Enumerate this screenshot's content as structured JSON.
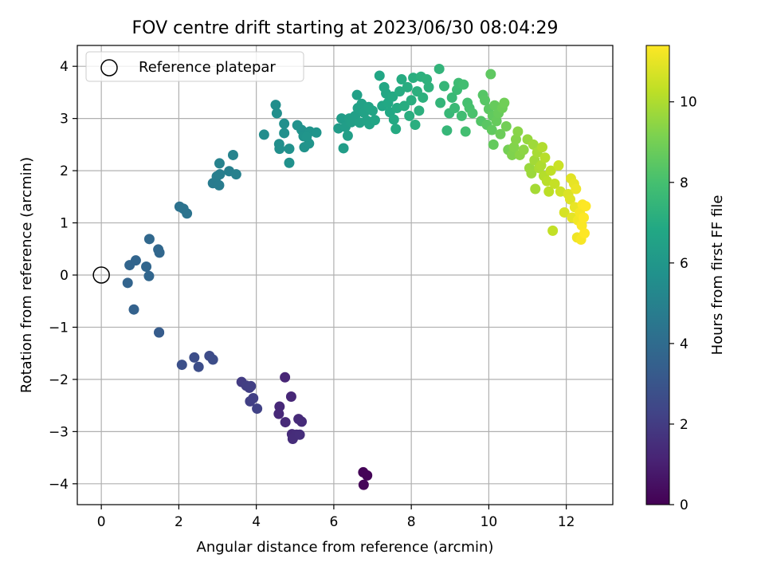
{
  "chart_data": {
    "type": "scatter",
    "title": "FOV centre drift starting at 2023/06/30 08:04:29",
    "xlabel": "Angular distance from reference (arcmin)",
    "ylabel": "Rotation from reference (arcmin)",
    "xlim": [
      -0.62,
      13.2
    ],
    "ylim": [
      -4.4,
      4.4
    ],
    "x_ticks": [
      0,
      2,
      4,
      6,
      8,
      10,
      12
    ],
    "y_ticks": [
      -4,
      -3,
      -2,
      -1,
      0,
      1,
      2,
      3,
      4
    ],
    "grid": true,
    "legend": {
      "position": "top-left",
      "entries": [
        {
          "label": "Reference platepar",
          "marker": "open-circle"
        }
      ]
    },
    "reference_point": {
      "x": 0,
      "y": 0
    },
    "colorbar": {
      "label": "Hours from first FF file",
      "colormap": "viridis",
      "min": 0,
      "max": 11.4,
      "ticks": [
        0,
        2,
        4,
        6,
        8,
        10
      ]
    },
    "points": [
      {
        "x": 6.76,
        "y": -3.78,
        "t": 0.1
      },
      {
        "x": 6.86,
        "y": -3.84,
        "t": 0.1
      },
      {
        "x": 6.77,
        "y": -4.02,
        "t": 0.15
      },
      {
        "x": 4.74,
        "y": -1.96,
        "t": 1.2
      },
      {
        "x": 4.9,
        "y": -2.33,
        "t": 1.25
      },
      {
        "x": 4.6,
        "y": -2.52,
        "t": 1.3
      },
      {
        "x": 4.58,
        "y": -2.66,
        "t": 1.3
      },
      {
        "x": 4.75,
        "y": -2.82,
        "t": 1.35
      },
      {
        "x": 5.09,
        "y": -2.76,
        "t": 1.35
      },
      {
        "x": 5.17,
        "y": -2.81,
        "t": 1.4
      },
      {
        "x": 4.92,
        "y": -3.05,
        "t": 1.4
      },
      {
        "x": 5.04,
        "y": -3.06,
        "t": 1.45
      },
      {
        "x": 4.94,
        "y": -3.14,
        "t": 1.45
      },
      {
        "x": 5.12,
        "y": -3.06,
        "t": 1.5
      },
      {
        "x": 3.62,
        "y": -2.05,
        "t": 2.0
      },
      {
        "x": 3.74,
        "y": -2.12,
        "t": 2.05
      },
      {
        "x": 3.82,
        "y": -2.16,
        "t": 2.1
      },
      {
        "x": 3.86,
        "y": -2.13,
        "t": 2.1
      },
      {
        "x": 3.92,
        "y": -2.36,
        "t": 2.15
      },
      {
        "x": 3.84,
        "y": -2.42,
        "t": 2.15
      },
      {
        "x": 4.02,
        "y": -2.56,
        "t": 2.2
      },
      {
        "x": 2.79,
        "y": -1.55,
        "t": 2.6
      },
      {
        "x": 2.88,
        "y": -1.62,
        "t": 2.65
      },
      {
        "x": 2.4,
        "y": -1.58,
        "t": 2.7
      },
      {
        "x": 2.51,
        "y": -1.76,
        "t": 2.7
      },
      {
        "x": 2.08,
        "y": -1.72,
        "t": 2.8
      },
      {
        "x": 1.49,
        "y": -1.1,
        "t": 3.3
      },
      {
        "x": 1.49,
        "y": -1.1,
        "t": 3.3
      },
      {
        "x": 0.84,
        "y": -0.66,
        "t": 3.55
      },
      {
        "x": 0.68,
        "y": -0.15,
        "t": 3.65
      },
      {
        "x": 0.73,
        "y": 0.19,
        "t": 3.7
      },
      {
        "x": 0.89,
        "y": 0.28,
        "t": 3.7
      },
      {
        "x": 1.16,
        "y": 0.16,
        "t": 3.75
      },
      {
        "x": 1.23,
        "y": -0.02,
        "t": 3.75
      },
      {
        "x": 1.47,
        "y": 0.49,
        "t": 3.8
      },
      {
        "x": 1.5,
        "y": 0.43,
        "t": 3.8
      },
      {
        "x": 1.24,
        "y": 0.69,
        "t": 3.85
      },
      {
        "x": 2.02,
        "y": 1.31,
        "t": 4.3
      },
      {
        "x": 2.12,
        "y": 1.27,
        "t": 4.35
      },
      {
        "x": 2.21,
        "y": 1.18,
        "t": 4.35
      },
      {
        "x": 2.88,
        "y": 1.76,
        "t": 4.7
      },
      {
        "x": 3.04,
        "y": 1.72,
        "t": 4.75
      },
      {
        "x": 2.98,
        "y": 1.89,
        "t": 4.8
      },
      {
        "x": 3.06,
        "y": 1.93,
        "t": 4.85
      },
      {
        "x": 3.3,
        "y": 1.99,
        "t": 4.9
      },
      {
        "x": 3.48,
        "y": 1.93,
        "t": 4.95
      },
      {
        "x": 3.05,
        "y": 2.14,
        "t": 5.0
      },
      {
        "x": 3.4,
        "y": 2.3,
        "t": 5.05
      },
      {
        "x": 4.2,
        "y": 2.69,
        "t": 5.5
      },
      {
        "x": 4.5,
        "y": 3.26,
        "t": 5.55
      },
      {
        "x": 4.53,
        "y": 3.1,
        "t": 5.55
      },
      {
        "x": 4.59,
        "y": 2.51,
        "t": 5.6
      },
      {
        "x": 4.6,
        "y": 2.42,
        "t": 5.6
      },
      {
        "x": 4.72,
        "y": 2.9,
        "t": 5.65
      },
      {
        "x": 4.72,
        "y": 2.72,
        "t": 5.65
      },
      {
        "x": 4.85,
        "y": 2.42,
        "t": 5.7
      },
      {
        "x": 4.85,
        "y": 2.15,
        "t": 5.7
      },
      {
        "x": 5.06,
        "y": 2.87,
        "t": 5.75
      },
      {
        "x": 5.17,
        "y": 2.78,
        "t": 5.75
      },
      {
        "x": 5.22,
        "y": 2.66,
        "t": 5.8
      },
      {
        "x": 5.24,
        "y": 2.45,
        "t": 5.8
      },
      {
        "x": 5.36,
        "y": 2.52,
        "t": 5.85
      },
      {
        "x": 5.38,
        "y": 2.75,
        "t": 5.85
      },
      {
        "x": 5.55,
        "y": 2.73,
        "t": 5.9
      },
      {
        "x": 5.3,
        "y": 2.65,
        "t": 5.9
      },
      {
        "x": 6.12,
        "y": 2.81,
        "t": 6.2
      },
      {
        "x": 6.2,
        "y": 3.0,
        "t": 6.25
      },
      {
        "x": 6.25,
        "y": 2.43,
        "t": 6.3
      },
      {
        "x": 6.3,
        "y": 2.84,
        "t": 6.3
      },
      {
        "x": 6.36,
        "y": 2.67,
        "t": 6.35
      },
      {
        "x": 6.4,
        "y": 3.0,
        "t": 6.35
      },
      {
        "x": 6.45,
        "y": 2.93,
        "t": 6.4
      },
      {
        "x": 6.55,
        "y": 3.05,
        "t": 6.4
      },
      {
        "x": 6.6,
        "y": 3.45,
        "t": 6.45
      },
      {
        "x": 6.62,
        "y": 3.2,
        "t": 6.45
      },
      {
        "x": 6.67,
        "y": 2.92,
        "t": 6.5
      },
      {
        "x": 6.72,
        "y": 3.28,
        "t": 6.5
      },
      {
        "x": 6.78,
        "y": 3.11,
        "t": 6.55
      },
      {
        "x": 6.85,
        "y": 2.96,
        "t": 6.55
      },
      {
        "x": 6.9,
        "y": 3.22,
        "t": 6.6
      },
      {
        "x": 6.92,
        "y": 2.89,
        "t": 6.6
      },
      {
        "x": 7.0,
        "y": 3.15,
        "t": 6.65
      },
      {
        "x": 7.06,
        "y": 2.97,
        "t": 6.7
      },
      {
        "x": 7.18,
        "y": 3.82,
        "t": 6.75
      },
      {
        "x": 7.25,
        "y": 3.24,
        "t": 6.75
      },
      {
        "x": 7.3,
        "y": 3.6,
        "t": 6.8
      },
      {
        "x": 7.35,
        "y": 3.48,
        "t": 6.8
      },
      {
        "x": 7.4,
        "y": 3.3,
        "t": 6.85
      },
      {
        "x": 7.45,
        "y": 3.12,
        "t": 6.85
      },
      {
        "x": 7.52,
        "y": 3.42,
        "t": 6.9
      },
      {
        "x": 7.55,
        "y": 2.98,
        "t": 6.9
      },
      {
        "x": 7.6,
        "y": 2.8,
        "t": 6.95
      },
      {
        "x": 7.63,
        "y": 3.2,
        "t": 6.95
      },
      {
        "x": 7.7,
        "y": 3.52,
        "t": 7.0
      },
      {
        "x": 7.75,
        "y": 3.75,
        "t": 7.0
      },
      {
        "x": 7.82,
        "y": 3.24,
        "t": 7.05
      },
      {
        "x": 7.9,
        "y": 3.6,
        "t": 7.05
      },
      {
        "x": 7.95,
        "y": 3.05,
        "t": 7.1
      },
      {
        "x": 8.0,
        "y": 3.35,
        "t": 7.1
      },
      {
        "x": 8.05,
        "y": 3.78,
        "t": 7.15
      },
      {
        "x": 8.1,
        "y": 2.88,
        "t": 7.15
      },
      {
        "x": 8.15,
        "y": 3.52,
        "t": 7.2
      },
      {
        "x": 8.2,
        "y": 3.15,
        "t": 7.2
      },
      {
        "x": 8.25,
        "y": 3.8,
        "t": 7.25
      },
      {
        "x": 8.3,
        "y": 3.4,
        "t": 7.25
      },
      {
        "x": 8.4,
        "y": 3.75,
        "t": 7.3
      },
      {
        "x": 8.45,
        "y": 3.6,
        "t": 7.3
      },
      {
        "x": 8.72,
        "y": 3.95,
        "t": 7.4
      },
      {
        "x": 8.75,
        "y": 3.3,
        "t": 7.45
      },
      {
        "x": 8.85,
        "y": 3.62,
        "t": 7.5
      },
      {
        "x": 8.92,
        "y": 2.77,
        "t": 7.55
      },
      {
        "x": 8.98,
        "y": 3.1,
        "t": 7.6
      },
      {
        "x": 9.05,
        "y": 3.4,
        "t": 7.65
      },
      {
        "x": 9.12,
        "y": 3.2,
        "t": 7.7
      },
      {
        "x": 9.18,
        "y": 3.55,
        "t": 7.75
      },
      {
        "x": 9.22,
        "y": 3.68,
        "t": 7.8
      },
      {
        "x": 9.3,
        "y": 3.05,
        "t": 7.85
      },
      {
        "x": 9.35,
        "y": 3.65,
        "t": 7.9
      },
      {
        "x": 9.4,
        "y": 2.75,
        "t": 7.95
      },
      {
        "x": 9.45,
        "y": 3.3,
        "t": 8.0
      },
      {
        "x": 9.5,
        "y": 3.2,
        "t": 8.05
      },
      {
        "x": 9.58,
        "y": 3.1,
        "t": 8.1
      },
      {
        "x": 9.8,
        "y": 2.95,
        "t": 8.3
      },
      {
        "x": 9.85,
        "y": 3.45,
        "t": 8.35
      },
      {
        "x": 9.9,
        "y": 3.35,
        "t": 8.4
      },
      {
        "x": 9.95,
        "y": 2.88,
        "t": 8.45
      },
      {
        "x": 10.0,
        "y": 3.18,
        "t": 8.5
      },
      {
        "x": 10.05,
        "y": 3.85,
        "t": 8.55
      },
      {
        "x": 10.08,
        "y": 2.78,
        "t": 8.6
      },
      {
        "x": 10.1,
        "y": 3.05,
        "t": 8.6
      },
      {
        "x": 10.12,
        "y": 2.5,
        "t": 8.65
      },
      {
        "x": 10.15,
        "y": 3.25,
        "t": 8.7
      },
      {
        "x": 10.2,
        "y": 2.95,
        "t": 8.7
      },
      {
        "x": 10.25,
        "y": 3.1,
        "t": 8.75
      },
      {
        "x": 10.3,
        "y": 2.7,
        "t": 8.8
      },
      {
        "x": 10.35,
        "y": 3.2,
        "t": 8.85
      },
      {
        "x": 10.4,
        "y": 3.3,
        "t": 8.9
      },
      {
        "x": 10.45,
        "y": 2.85,
        "t": 8.95
      },
      {
        "x": 10.5,
        "y": 2.4,
        "t": 9.0
      },
      {
        "x": 10.6,
        "y": 2.3,
        "t": 9.2
      },
      {
        "x": 10.65,
        "y": 2.45,
        "t": 9.25
      },
      {
        "x": 10.7,
        "y": 2.6,
        "t": 9.3
      },
      {
        "x": 10.75,
        "y": 2.75,
        "t": 9.35
      },
      {
        "x": 10.8,
        "y": 2.3,
        "t": 9.4
      },
      {
        "x": 10.9,
        "y": 2.4,
        "t": 9.45
      },
      {
        "x": 11.0,
        "y": 2.6,
        "t": 9.6
      },
      {
        "x": 11.05,
        "y": 2.05,
        "t": 9.65
      },
      {
        "x": 11.1,
        "y": 1.95,
        "t": 9.7
      },
      {
        "x": 11.15,
        "y": 2.5,
        "t": 9.75
      },
      {
        "x": 11.18,
        "y": 2.2,
        "t": 9.8
      },
      {
        "x": 11.2,
        "y": 1.65,
        "t": 9.85
      },
      {
        "x": 11.25,
        "y": 2.35,
        "t": 9.9
      },
      {
        "x": 11.3,
        "y": 2.05,
        "t": 9.95
      },
      {
        "x": 11.35,
        "y": 2.1,
        "t": 10.0
      },
      {
        "x": 11.38,
        "y": 2.45,
        "t": 10.05
      },
      {
        "x": 11.42,
        "y": 1.9,
        "t": 10.1
      },
      {
        "x": 11.45,
        "y": 2.25,
        "t": 10.15
      },
      {
        "x": 11.5,
        "y": 1.8,
        "t": 10.2
      },
      {
        "x": 11.55,
        "y": 1.6,
        "t": 10.25
      },
      {
        "x": 11.6,
        "y": 2.0,
        "t": 10.3
      },
      {
        "x": 11.65,
        "y": 0.85,
        "t": 10.35
      },
      {
        "x": 11.7,
        "y": 1.75,
        "t": 10.4
      },
      {
        "x": 11.8,
        "y": 2.1,
        "t": 10.5
      },
      {
        "x": 11.85,
        "y": 1.6,
        "t": 10.55
      },
      {
        "x": 11.95,
        "y": 1.2,
        "t": 10.7
      },
      {
        "x": 12.05,
        "y": 1.55,
        "t": 10.8
      },
      {
        "x": 12.1,
        "y": 1.45,
        "t": 10.85
      },
      {
        "x": 12.12,
        "y": 1.85,
        "t": 10.9
      },
      {
        "x": 12.15,
        "y": 1.1,
        "t": 10.95
      },
      {
        "x": 12.2,
        "y": 1.75,
        "t": 11.0
      },
      {
        "x": 12.22,
        "y": 1.3,
        "t": 11.05
      },
      {
        "x": 12.25,
        "y": 1.65,
        "t": 11.1
      },
      {
        "x": 12.28,
        "y": 0.72,
        "t": 11.15
      },
      {
        "x": 12.3,
        "y": 1.05,
        "t": 11.2
      },
      {
        "x": 12.35,
        "y": 1.2,
        "t": 11.25
      },
      {
        "x": 12.38,
        "y": 0.68,
        "t": 11.3
      },
      {
        "x": 12.4,
        "y": 0.95,
        "t": 11.35
      },
      {
        "x": 12.42,
        "y": 1.35,
        "t": 11.35
      },
      {
        "x": 12.45,
        "y": 1.1,
        "t": 11.38
      },
      {
        "x": 12.47,
        "y": 0.8,
        "t": 11.4
      },
      {
        "x": 12.5,
        "y": 1.32,
        "t": 11.4
      }
    ]
  }
}
